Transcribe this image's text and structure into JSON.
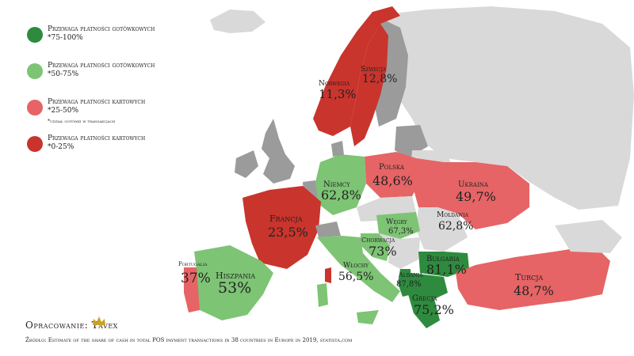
{
  "colors": {
    "dark_green": "#2e8b3e",
    "light_green": "#7dc474",
    "light_red": "#e66465",
    "dark_red": "#c9342d",
    "no_data_dark": "#9b9b9b",
    "no_data_light": "#d9d9d9",
    "sea": "#ffffff"
  },
  "legend": [
    {
      "title": "Przewaga płatności gotówkowych",
      "range": "*75-100%",
      "color": "#2e8b3e"
    },
    {
      "title": "Przewaga płatności gotówkowych",
      "range": "*50-75%",
      "color": "#7dc474"
    },
    {
      "title": "Przewaga płatności kartowych",
      "range": "*25-50%",
      "color": "#e66465"
    },
    {
      "title": "Przewaga płatności kartowych",
      "range": "*0-25%",
      "color": "#c9342d"
    }
  ],
  "legend_note": "*udział gotówki w transakcjach",
  "countries": [
    {
      "name": "Norwegia",
      "value": "11,3%"
    },
    {
      "name": "Szwecja",
      "value": "12,8%"
    },
    {
      "name": "Polska",
      "value": "48,6%"
    },
    {
      "name": "Niemcy",
      "value": "62,8%"
    },
    {
      "name": "Ukraina",
      "value": "49,7%"
    },
    {
      "name": "Francja",
      "value": "23,5%"
    },
    {
      "name": "Węgry",
      "value": "67,3%"
    },
    {
      "name": "Mołdawia",
      "value": "62,8%"
    },
    {
      "name": "Chorwacja",
      "value": "73%"
    },
    {
      "name": "Portugalia",
      "value": "37%"
    },
    {
      "name": "Hiszpania",
      "value": "53%"
    },
    {
      "name": "Włochy",
      "value": "56,5%"
    },
    {
      "name": "Bułgaria",
      "value": "81,1%"
    },
    {
      "name": "Turcja",
      "value": "48,7%"
    },
    {
      "name": "Albania",
      "value": "87,8%"
    },
    {
      "name": "Grecja",
      "value": "75,2%"
    }
  ],
  "credit": "Opracowanie: Tavex",
  "source": "Źródło: Estimate of the share of cash in total POS payment transactions in 38 countries in Europe in 2019, statista.com"
}
